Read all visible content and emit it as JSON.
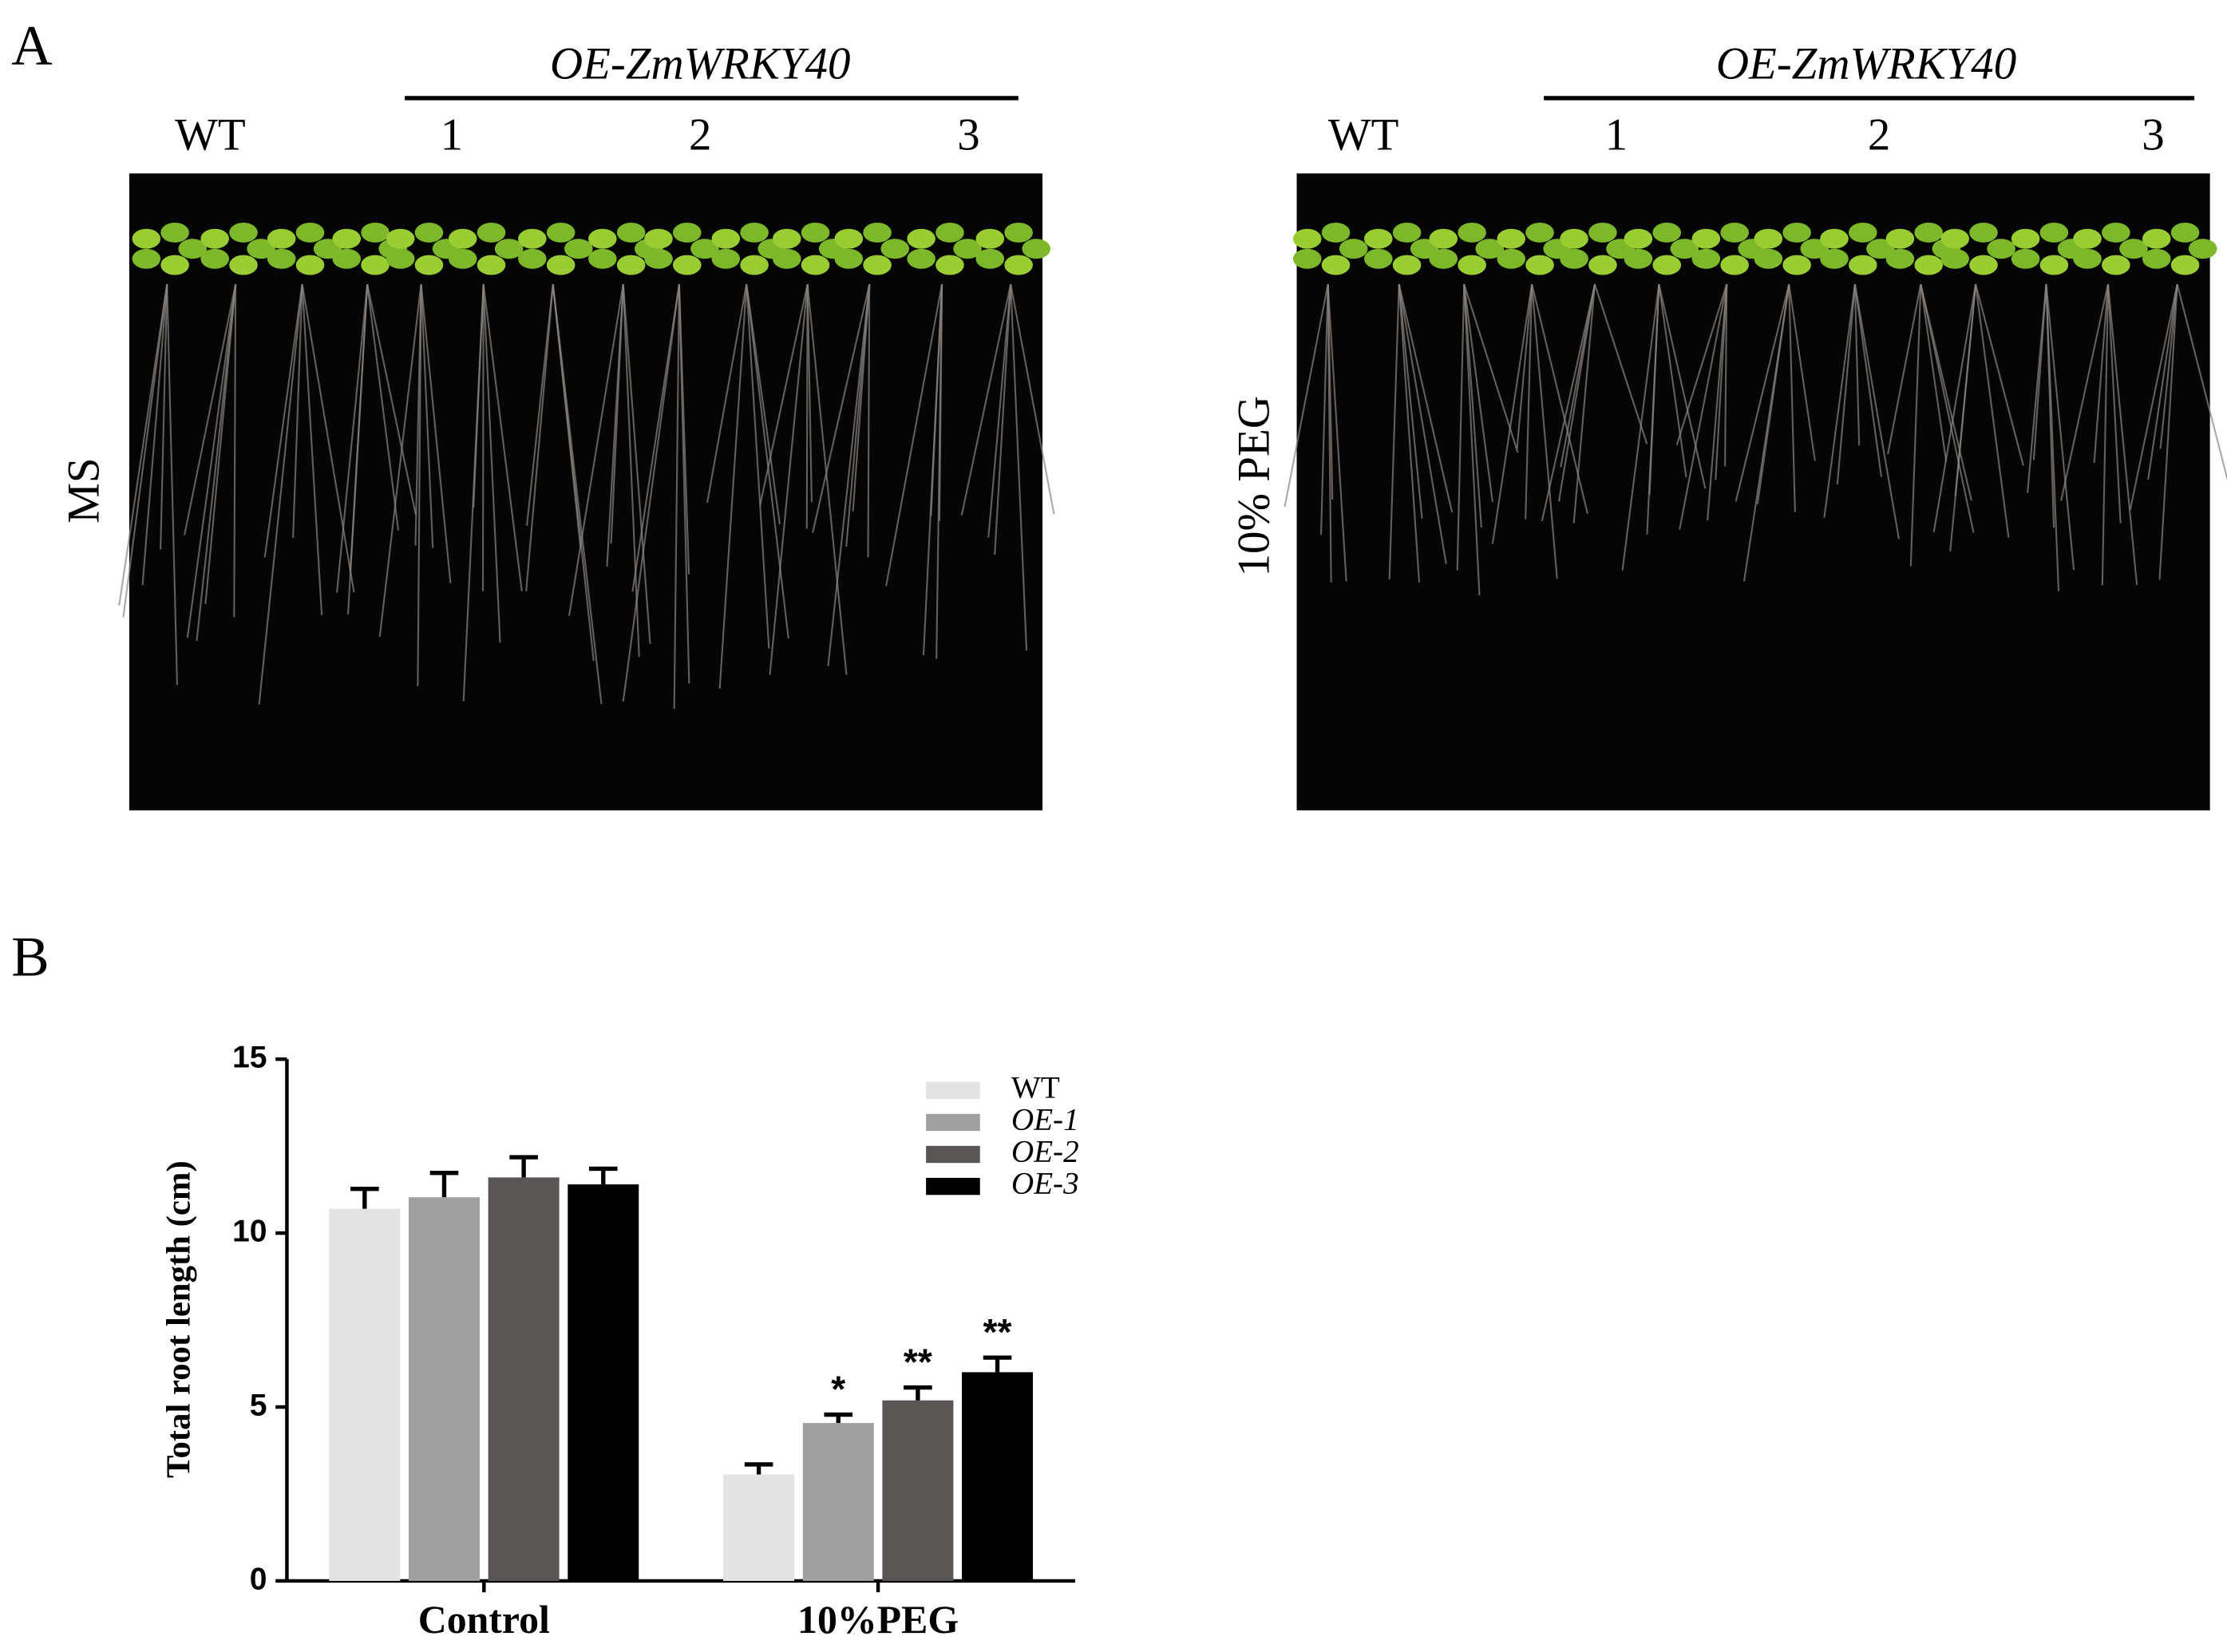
{
  "panel_a": {
    "label": "A",
    "left": {
      "group_label": "OE-ZmWRKY40",
      "lanes": [
        "WT",
        "1",
        "2",
        "3"
      ],
      "condition": "MS"
    },
    "right": {
      "group_label": "OE-ZmWRKY40",
      "lanes": [
        "WT",
        "1",
        "2",
        "3"
      ],
      "condition": "10% PEG"
    }
  },
  "panel_b": {
    "label": "B"
  },
  "chart_data": {
    "type": "bar",
    "ylabel": "Total root length (cm)",
    "categories": [
      "Control",
      "10%PEG"
    ],
    "series": [
      {
        "name": "WT",
        "color": "#e3e3e3",
        "values": [
          10.7,
          3.06
        ],
        "errors": [
          0.57,
          0.29
        ],
        "significance": [
          null,
          null
        ]
      },
      {
        "name": "OE-1",
        "color": "#a0a0a0",
        "values": [
          11.03,
          4.54
        ],
        "errors": [
          0.7,
          0.24
        ],
        "significance": [
          null,
          "*"
        ]
      },
      {
        "name": "OE-2",
        "color": "#595555",
        "values": [
          11.6,
          5.19
        ],
        "errors": [
          0.58,
          0.37
        ],
        "significance": [
          null,
          "**"
        ]
      },
      {
        "name": "OE-3",
        "color": "#000000",
        "values": [
          11.4,
          6.0
        ],
        "errors": [
          0.45,
          0.42
        ],
        "significance": [
          null,
          "**"
        ]
      }
    ],
    "ylim": [
      0,
      15
    ],
    "yticks": [
      0,
      5,
      10,
      15
    ],
    "grid": false,
    "legend": "upper right"
  }
}
